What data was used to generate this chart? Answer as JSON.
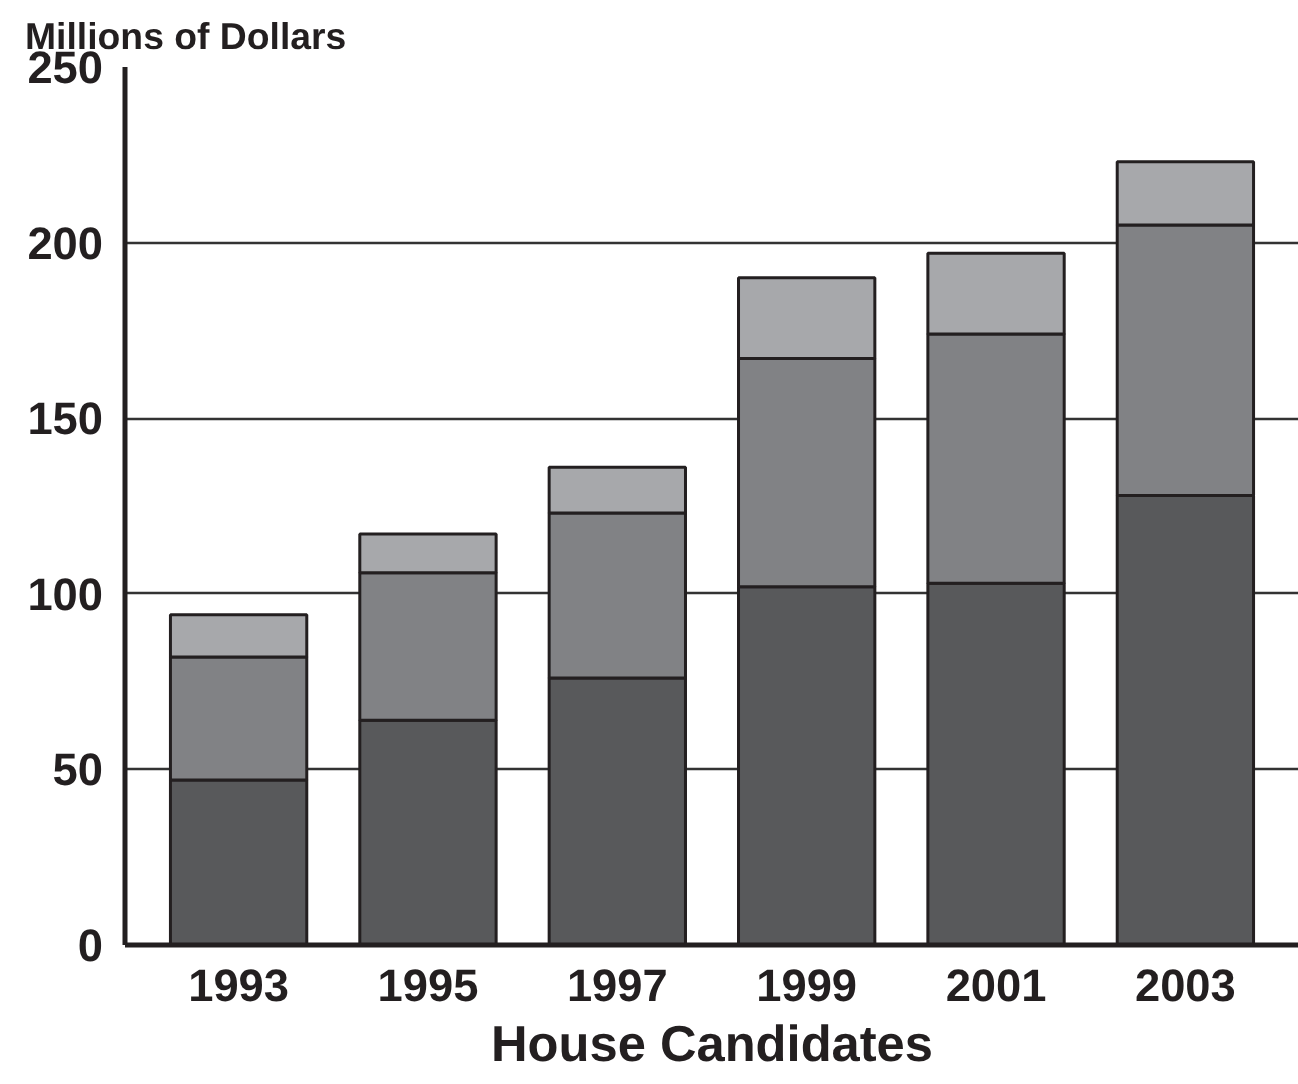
{
  "chart_data": {
    "type": "bar",
    "stacked": true,
    "ylabel": "Millions of Dollars",
    "xlabel": "House Candidates",
    "categories": [
      "1993",
      "1995",
      "1997",
      "1999",
      "2001",
      "2003"
    ],
    "series": [
      {
        "color": "#58595b",
        "values": [
          47,
          64,
          76,
          102,
          103,
          128
        ]
      },
      {
        "color": "#818285",
        "values": [
          35,
          42,
          47,
          65,
          71,
          77
        ]
      },
      {
        "color": "#a7a8ab",
        "values": [
          12,
          11,
          13,
          23,
          23,
          18
        ]
      }
    ],
    "ylim": [
      0,
      250
    ],
    "yticks": [
      0,
      50,
      100,
      150,
      200,
      250
    ],
    "grid": "y"
  }
}
